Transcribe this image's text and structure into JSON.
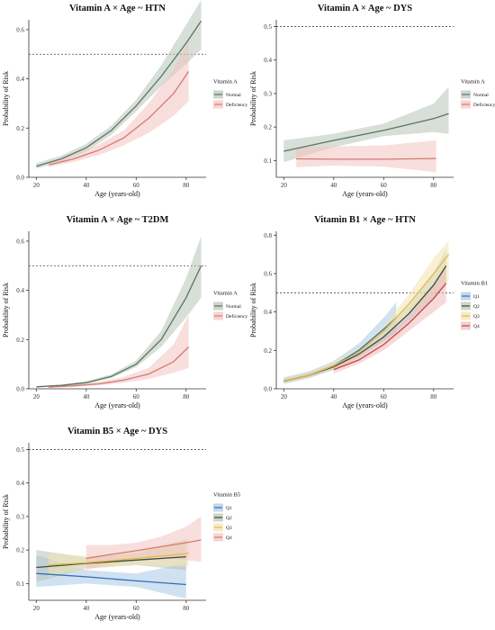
{
  "chart_data": [
    {
      "type": "line",
      "title": "Vitamin A × Age ~ HTN",
      "xlabel": "Age (years-old)",
      "ylabel": "Probability of Risk",
      "xlim": [
        17,
        88
      ],
      "ylim": [
        0,
        0.64
      ],
      "x_ticks": [
        20,
        40,
        60,
        80
      ],
      "y_ticks": [
        0.0,
        0.2,
        0.4,
        0.6
      ],
      "y_tick_labels": [
        "0.0",
        "0.2",
        "0.4",
        "0.6"
      ],
      "reference_line": 0.5,
      "legend_title": "Vitamin A",
      "series": [
        {
          "name": "Normal",
          "color": "#5c7560",
          "fill": "#b6c5b8",
          "x": [
            20,
            30,
            40,
            50,
            60,
            70,
            80,
            86
          ],
          "y": [
            0.045,
            0.075,
            0.12,
            0.19,
            0.29,
            0.41,
            0.545,
            0.635
          ],
          "lo": [
            0.035,
            0.063,
            0.105,
            0.172,
            0.268,
            0.37,
            0.46,
            0.52
          ],
          "hi": [
            0.057,
            0.088,
            0.136,
            0.21,
            0.315,
            0.455,
            0.62,
            0.72
          ]
        },
        {
          "name": "Deficiency",
          "color": "#d47a73",
          "fill": "#f2c3bf",
          "x": [
            25,
            35,
            45,
            55,
            65,
            75,
            81
          ],
          "y": [
            0.05,
            0.075,
            0.11,
            0.16,
            0.24,
            0.34,
            0.43
          ],
          "lo": [
            0.042,
            0.062,
            0.09,
            0.13,
            0.18,
            0.25,
            0.31
          ],
          "hi": [
            0.062,
            0.09,
            0.133,
            0.19,
            0.3,
            0.44,
            0.55
          ]
        }
      ]
    },
    {
      "type": "line",
      "title": "Vitamin A × Age ~ DYS",
      "xlabel": "Age (years-old)",
      "ylabel": "Probability of Risk",
      "xlim": [
        17,
        88
      ],
      "ylim": [
        0.05,
        0.52
      ],
      "x_ticks": [
        20,
        40,
        60,
        80
      ],
      "y_ticks": [
        0.1,
        0.2,
        0.3,
        0.4,
        0.5
      ],
      "y_tick_labels": [
        "0.1",
        "0.2",
        "0.3",
        "0.4",
        "0.5"
      ],
      "reference_line": 0.5,
      "legend_title": "Vitamin A",
      "series": [
        {
          "name": "Normal",
          "color": "#5c7560",
          "fill": "#b6c5b8",
          "x": [
            20,
            40,
            60,
            80,
            86
          ],
          "y": [
            0.128,
            0.16,
            0.19,
            0.225,
            0.24
          ],
          "lo": [
            0.095,
            0.14,
            0.173,
            0.185,
            0.18
          ],
          "hi": [
            0.16,
            0.18,
            0.21,
            0.27,
            0.32
          ]
        },
        {
          "name": "Deficiency",
          "color": "#d47a73",
          "fill": "#f2c3bf",
          "x": [
            25,
            40,
            60,
            81
          ],
          "y": [
            0.105,
            0.104,
            0.104,
            0.106
          ],
          "lo": [
            0.08,
            0.085,
            0.082,
            0.065
          ],
          "hi": [
            0.14,
            0.142,
            0.145,
            0.16
          ]
        }
      ]
    },
    {
      "type": "line",
      "title": "Vitamin A × Age ~ T2DM",
      "xlabel": "Age (years-old)",
      "ylabel": "Probability of Risk",
      "xlim": [
        17,
        88
      ],
      "ylim": [
        0,
        0.64
      ],
      "x_ticks": [
        20,
        40,
        60,
        80
      ],
      "y_ticks": [
        0.0,
        0.2,
        0.4,
        0.6
      ],
      "y_tick_labels": [
        "0.0",
        "0.2",
        "0.4",
        "0.6"
      ],
      "reference_line": 0.5,
      "legend_title": "Vitamin A",
      "series": [
        {
          "name": "Normal",
          "color": "#5c7560",
          "fill": "#b6c5b8",
          "x": [
            20,
            30,
            40,
            50,
            60,
            70,
            80,
            86
          ],
          "y": [
            0.008,
            0.014,
            0.025,
            0.05,
            0.1,
            0.2,
            0.37,
            0.5
          ],
          "lo": [
            0.006,
            0.011,
            0.02,
            0.043,
            0.088,
            0.17,
            0.29,
            0.37
          ],
          "hi": [
            0.01,
            0.017,
            0.031,
            0.058,
            0.115,
            0.235,
            0.45,
            0.62
          ]
        },
        {
          "name": "Deficiency",
          "color": "#d47a73",
          "fill": "#f2c3bf",
          "x": [
            25,
            35,
            45,
            55,
            65,
            75,
            81
          ],
          "y": [
            0.007,
            0.012,
            0.02,
            0.035,
            0.06,
            0.11,
            0.17
          ],
          "lo": [
            0.004,
            0.008,
            0.014,
            0.025,
            0.04,
            0.065,
            0.085
          ],
          "hi": [
            0.01,
            0.017,
            0.028,
            0.048,
            0.085,
            0.18,
            0.3
          ]
        }
      ]
    },
    {
      "type": "line",
      "title": "Vitamin B1 × Age ~ HTN",
      "xlabel": "Age (years-old)",
      "ylabel": "Probability of Risk",
      "xlim": [
        17,
        88
      ],
      "ylim": [
        0,
        0.82
      ],
      "x_ticks": [
        20,
        40,
        60,
        80
      ],
      "y_ticks": [
        0.0,
        0.2,
        0.4,
        0.6,
        0.8
      ],
      "y_tick_labels": [
        "0.0",
        "0.2",
        "0.4",
        "0.6",
        "0.8"
      ],
      "reference_line": 0.5,
      "legend_title": "Vitamin B1",
      "series": [
        {
          "name": "Q1",
          "color": "#2e6fb5",
          "fill": "#a9c8e6",
          "x": [
            20,
            30,
            40,
            50,
            60,
            65
          ],
          "y": [
            0.04,
            0.07,
            0.12,
            0.2,
            0.31,
            0.37
          ],
          "lo": [
            0.025,
            0.055,
            0.1,
            0.17,
            0.25,
            0.29
          ],
          "hi": [
            0.06,
            0.09,
            0.145,
            0.235,
            0.37,
            0.45
          ]
        },
        {
          "name": "Q2",
          "color": "#3c4b3c",
          "fill": "#b8c3b6",
          "x": [
            20,
            30,
            40,
            50,
            60,
            70,
            80,
            85
          ],
          "y": [
            0.04,
            0.07,
            0.115,
            0.18,
            0.27,
            0.39,
            0.54,
            0.64
          ],
          "lo": [
            0.03,
            0.058,
            0.1,
            0.16,
            0.245,
            0.35,
            0.47,
            0.54
          ],
          "hi": [
            0.052,
            0.085,
            0.13,
            0.2,
            0.3,
            0.43,
            0.6,
            0.73
          ]
        },
        {
          "name": "Q3",
          "color": "#e0b94a",
          "fill": "#f3e3b1",
          "x": [
            20,
            30,
            40,
            50,
            60,
            70,
            80,
            86
          ],
          "y": [
            0.04,
            0.07,
            0.12,
            0.19,
            0.3,
            0.44,
            0.6,
            0.7
          ],
          "lo": [
            0.028,
            0.058,
            0.103,
            0.17,
            0.27,
            0.39,
            0.5,
            0.56
          ],
          "hi": [
            0.055,
            0.085,
            0.14,
            0.215,
            0.33,
            0.49,
            0.68,
            0.77
          ]
        },
        {
          "name": "Q4",
          "color": "#c7423f",
          "fill": "#efbbbb",
          "x": [
            40,
            50,
            60,
            70,
            80,
            85
          ],
          "y": [
            0.1,
            0.15,
            0.23,
            0.34,
            0.47,
            0.55
          ],
          "lo": [
            0.08,
            0.13,
            0.2,
            0.3,
            0.4,
            0.45
          ],
          "hi": [
            0.12,
            0.175,
            0.26,
            0.38,
            0.54,
            0.65
          ]
        }
      ]
    },
    {
      "type": "line",
      "title": "Vitamin B5 × Age ~ DYS",
      "xlabel": "Age (years-old)",
      "ylabel": "Probability of Risk",
      "xlim": [
        17,
        88
      ],
      "ylim": [
        0.05,
        0.52
      ],
      "x_ticks": [
        20,
        40,
        60,
        80
      ],
      "y_ticks": [
        0.1,
        0.2,
        0.3,
        0.4,
        0.5
      ],
      "y_tick_labels": [
        "0.1",
        "0.2",
        "0.3",
        "0.4",
        "0.5"
      ],
      "reference_line": 0.5,
      "legend_title": "Vitamin B5",
      "series": [
        {
          "name": "Q1",
          "color": "#2e6fb5",
          "fill": "#a9c8e6",
          "x": [
            20,
            40,
            60,
            80
          ],
          "y": [
            0.13,
            0.12,
            0.108,
            0.097
          ],
          "lo": [
            0.09,
            0.1,
            0.09,
            0.055
          ],
          "hi": [
            0.185,
            0.14,
            0.13,
            0.16
          ]
        },
        {
          "name": "Q2",
          "color": "#3c4b3c",
          "fill": "#b8c3b6",
          "x": [
            20,
            40,
            60,
            80
          ],
          "y": [
            0.148,
            0.16,
            0.17,
            0.18
          ],
          "lo": [
            0.105,
            0.145,
            0.155,
            0.14
          ],
          "hi": [
            0.2,
            0.178,
            0.19,
            0.23
          ]
        },
        {
          "name": "Q3",
          "color": "#e0b94a",
          "fill": "#f3e3b1",
          "x": [
            25,
            40,
            60,
            81
          ],
          "y": [
            0.155,
            0.162,
            0.175,
            0.19
          ],
          "lo": [
            0.12,
            0.145,
            0.155,
            0.15
          ],
          "hi": [
            0.19,
            0.182,
            0.195,
            0.235
          ]
        },
        {
          "name": "Q4",
          "color": "#d47a73",
          "fill": "#f2c3bf",
          "x": [
            40,
            50,
            60,
            70,
            80,
            86
          ],
          "y": [
            0.175,
            0.187,
            0.198,
            0.21,
            0.222,
            0.23
          ],
          "lo": [
            0.14,
            0.16,
            0.175,
            0.18,
            0.17,
            0.165
          ],
          "hi": [
            0.215,
            0.215,
            0.222,
            0.24,
            0.27,
            0.3
          ]
        }
      ]
    }
  ]
}
